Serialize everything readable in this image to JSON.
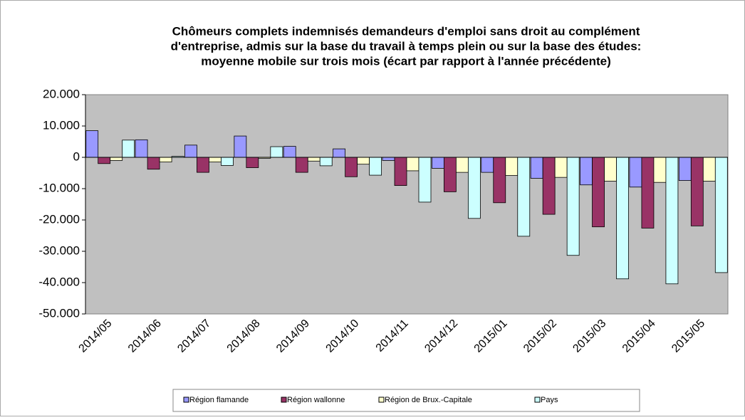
{
  "chart_data": {
    "type": "bar",
    "title": [
      "Chômeurs complets indemnisés demandeurs d'emploi sans droit au complément",
      "d'entreprise, admis sur la base du travail à temps plein ou sur la base des études:",
      "moyenne mobile sur trois mois (écart par rapport à l'année précédente)"
    ],
    "categories": [
      "2014/05",
      "2014/06",
      "2014/07",
      "2014/08",
      "2014/09",
      "2014/10",
      "2014/11",
      "2014/12",
      "2015/01",
      "2015/02",
      "2015/03",
      "2015/04",
      "2015/05"
    ],
    "series": [
      {
        "name": "Région flamande",
        "color": "#9999ff",
        "values": [
          8500,
          5600,
          3900,
          6800,
          3500,
          2700,
          -1000,
          -3500,
          -4800,
          -6700,
          -8800,
          -9500,
          -7400
        ]
      },
      {
        "name": "Région wallonne",
        "color": "#993366",
        "values": [
          -2000,
          -3800,
          -4800,
          -3300,
          -4800,
          -6200,
          -9000,
          -11000,
          -14500,
          -18200,
          -22200,
          -22600,
          -21900
        ]
      },
      {
        "name": "Région de Brux.-Capitale",
        "color": "#ffffcc",
        "values": [
          -1000,
          -1500,
          -1500,
          -300,
          -1200,
          -2200,
          -4300,
          -4800,
          -5800,
          -6400,
          -7600,
          -8000,
          -7600
        ]
      },
      {
        "name": "Pays",
        "color": "#ccffff",
        "values": [
          5500,
          300,
          -2600,
          3400,
          -2700,
          -5700,
          -14300,
          -19500,
          -25200,
          -31300,
          -38800,
          -40400,
          -36800
        ]
      }
    ],
    "ylim": [
      -50000,
      20000
    ],
    "yticks": [
      {
        "value": -50000,
        "label": "-50.000"
      },
      {
        "value": -40000,
        "label": "-40.000"
      },
      {
        "value": -30000,
        "label": "-30.000"
      },
      {
        "value": -20000,
        "label": "-20.000"
      },
      {
        "value": -10000,
        "label": "-10.000"
      },
      0,
      {
        "value": 10000,
        "label": "10.000"
      },
      {
        "value": 20000,
        "label": "20.000"
      }
    ],
    "legend": "bottom"
  }
}
